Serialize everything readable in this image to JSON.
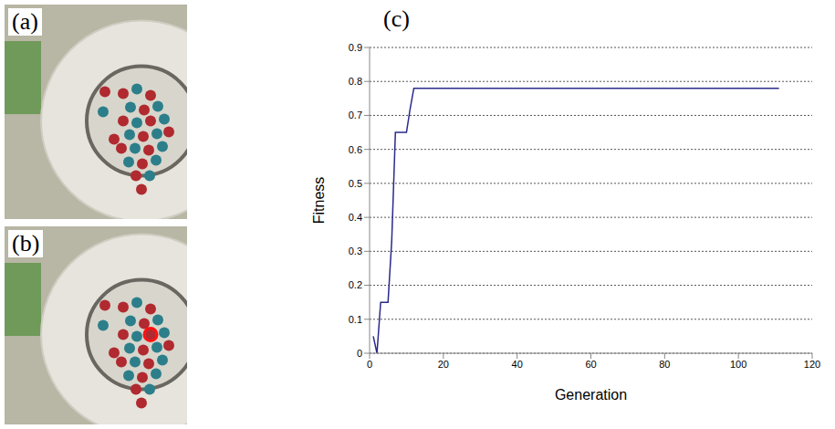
{
  "panel_labels": [
    "(a)",
    "(b)",
    "(c)"
  ],
  "chart_data": {
    "type": "line",
    "x_label": "Generation",
    "y_label": "Fitness",
    "x": [
      1,
      2,
      3,
      4,
      5,
      6,
      7,
      8,
      9,
      10,
      11,
      12,
      111
    ],
    "series": [
      {
        "name": "Fitness",
        "color": "#2a2a8c",
        "values": [
          0.05,
          0,
          0.15,
          0.15,
          0.15,
          0.33,
          0.65,
          0.65,
          0.65,
          0.65,
          0.72,
          0.78,
          0.78
        ]
      }
    ],
    "xlim": [
      0,
      120
    ],
    "xticks": [
      0,
      20,
      40,
      60,
      80,
      100,
      120
    ],
    "ylim": [
      0,
      0.9
    ],
    "yticks": [
      0,
      0.1,
      0.2,
      0.3,
      0.4,
      0.5,
      0.6,
      0.7,
      0.8,
      0.9
    ],
    "grid": true
  }
}
